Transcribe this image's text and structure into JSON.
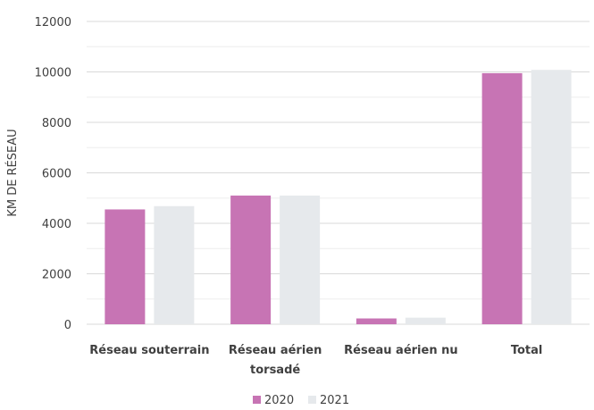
{
  "chart_data": {
    "type": "bar",
    "title": "",
    "xlabel": "",
    "ylabel": "KM DE RÉSEAU",
    "categories": [
      [
        "Réseau souterrain"
      ],
      [
        "Réseau aérien",
        "torsadé"
      ],
      [
        "Réseau aérien nu"
      ],
      [
        "Total"
      ]
    ],
    "series": [
      {
        "name": "2020",
        "color": "#c774b4",
        "values": [
          4550,
          5100,
          230,
          9950
        ]
      },
      {
        "name": "2021",
        "color": "#e6e9ec",
        "values": [
          4680,
          5100,
          260,
          10080
        ]
      }
    ],
    "ylim": [
      0,
      12000
    ],
    "yticks": [
      0,
      2000,
      4000,
      6000,
      8000,
      10000,
      12000
    ],
    "grid": true,
    "legend_position": "bottom"
  }
}
